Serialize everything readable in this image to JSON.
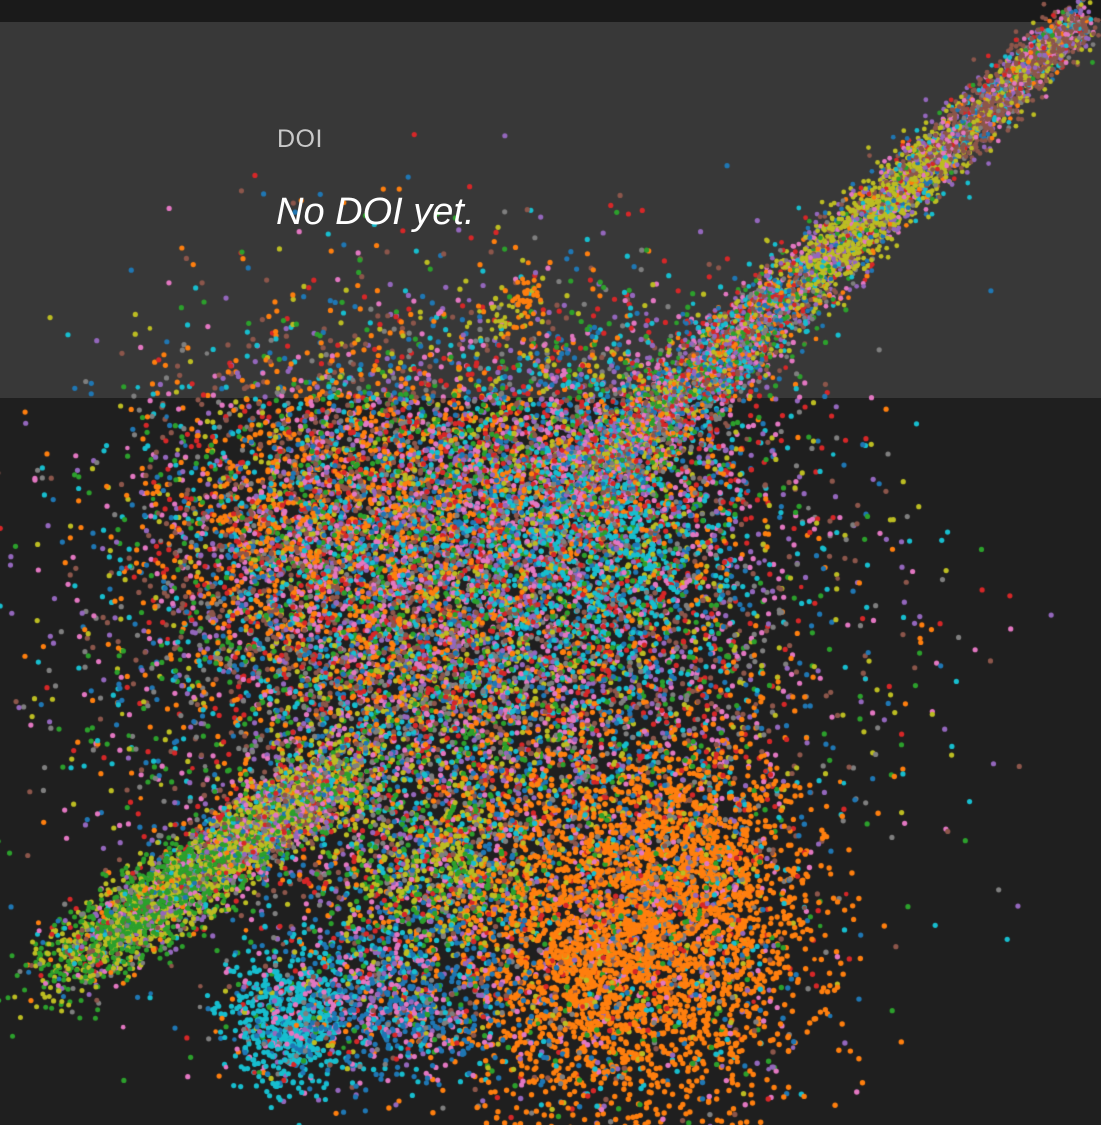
{
  "doi_panel": {
    "label": "DOI",
    "value": "No DOI yet."
  },
  "visualization": {
    "type": "scatter-embedding",
    "point_colors": [
      "#1f77b4",
      "#ff7f0e",
      "#2ca02c",
      "#d62728",
      "#9467bd",
      "#8c564b",
      "#e377c2",
      "#7f7f7f",
      "#bcbd22",
      "#17becf"
    ],
    "background_colors": {
      "page": "#1f1f1f",
      "panel": "#383838",
      "top_strip": "#1a1a1a"
    }
  }
}
